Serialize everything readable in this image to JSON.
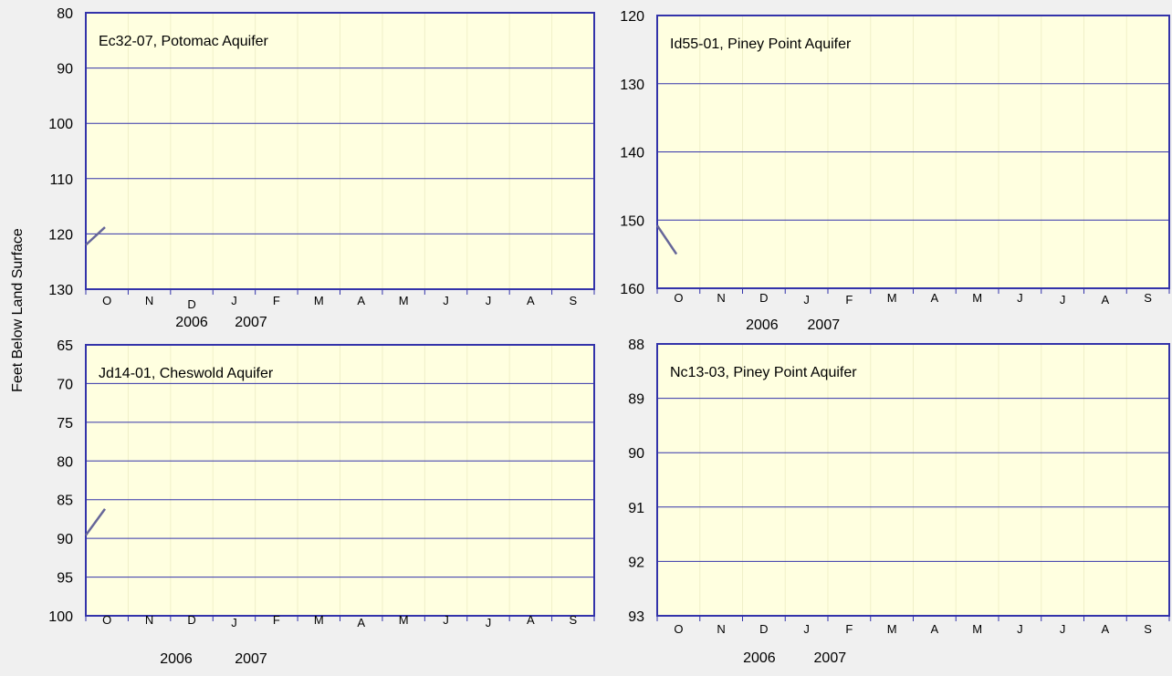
{
  "y_axis_title": "Feet Below Land Surface",
  "colors": {
    "background": "#f0f0f0",
    "plot_fill": "#ffffe0",
    "frame": "#3333aa",
    "gridline": "#3333aa",
    "minor_grid": "#f0f0c8",
    "series_line": "#666699"
  },
  "chart_data": [
    {
      "type": "line",
      "title": "Ec32-07, Potomac Aquifer",
      "ylabel": "Feet Below Land Surface",
      "yaxis_inverted": true,
      "ylim": [
        80,
        130
      ],
      "yticks": [
        80,
        90,
        100,
        110,
        120,
        130
      ],
      "month_ticks": [
        "O",
        "N",
        "D",
        "J",
        "F",
        "M",
        "A",
        "M",
        "J",
        "J",
        "A",
        "S"
      ],
      "year_labels": [
        "2006",
        "2007"
      ],
      "grid": true,
      "series": [
        {
          "x": [
            "2006-10-01",
            "2006-10-15"
          ],
          "y": [
            122.0,
            118.8
          ]
        }
      ]
    },
    {
      "type": "line",
      "title": "Id55-01, Piney Point Aquifer",
      "yaxis_inverted": true,
      "ylim": [
        120,
        160
      ],
      "yticks": [
        120,
        130,
        140,
        150,
        160
      ],
      "month_ticks": [
        "O",
        "N",
        "D",
        "J",
        "F",
        "M",
        "A",
        "M",
        "J",
        "J",
        "A",
        "S"
      ],
      "year_labels": [
        "2006",
        "2007"
      ],
      "grid": true,
      "series": [
        {
          "x": [
            "2006-10-01",
            "2006-10-15"
          ],
          "y": [
            150.8,
            155.0
          ]
        }
      ]
    },
    {
      "type": "line",
      "title": "Jd14-01, Cheswold Aquifer",
      "yaxis_inverted": true,
      "ylim": [
        65,
        100
      ],
      "yticks": [
        65,
        70,
        75,
        80,
        85,
        90,
        95,
        100
      ],
      "month_ticks": [
        "O",
        "N",
        "D",
        "J",
        "F",
        "M",
        "A",
        "M",
        "J",
        "J",
        "A",
        "S"
      ],
      "year_labels": [
        "2006",
        "2007"
      ],
      "grid": true,
      "series": [
        {
          "x": [
            "2006-10-01",
            "2006-10-15"
          ],
          "y": [
            89.6,
            86.2
          ]
        }
      ]
    },
    {
      "type": "line",
      "title": "Nc13-03, Piney Point Aquifer",
      "yaxis_inverted": true,
      "ylim": [
        88,
        93
      ],
      "yticks": [
        88,
        89,
        90,
        91,
        92,
        93
      ],
      "month_ticks": [
        "O",
        "N",
        "D",
        "J",
        "F",
        "M",
        "A",
        "M",
        "J",
        "J",
        "A",
        "S"
      ],
      "year_labels": [
        "2006",
        "2007"
      ],
      "grid": true,
      "series": []
    }
  ]
}
